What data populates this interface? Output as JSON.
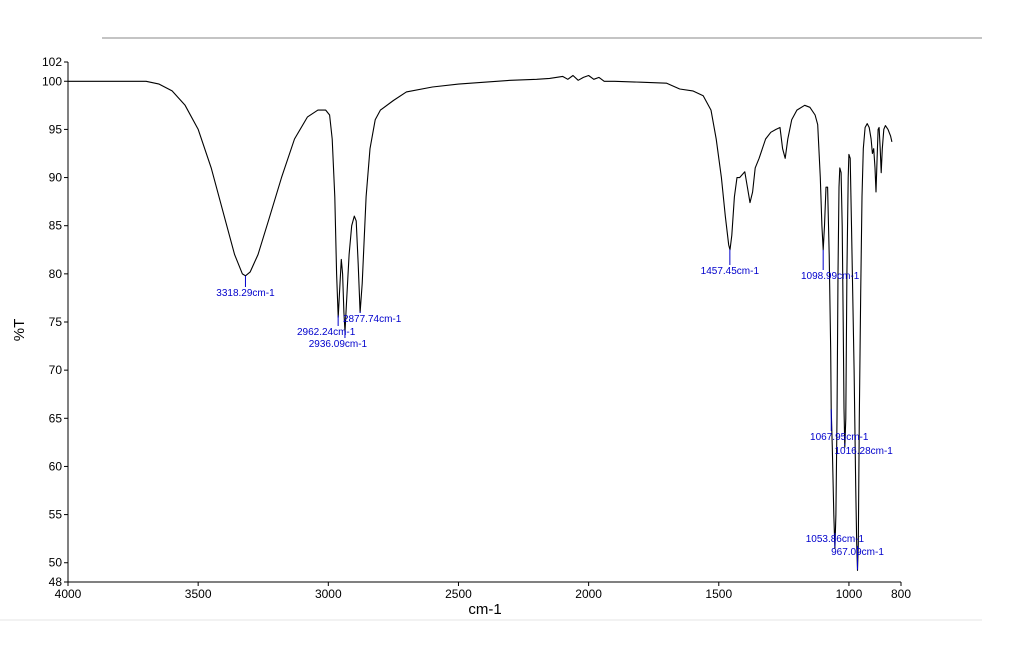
{
  "chart_data": {
    "type": "line",
    "xlabel": "cm-1",
    "ylabel": "%T",
    "xlim": [
      4000,
      800
    ],
    "ylim": [
      48,
      102
    ],
    "x_ticks": [
      4000,
      3500,
      3000,
      2500,
      2000,
      1500,
      1000,
      800
    ],
    "y_ticks": [
      48,
      50,
      55,
      60,
      65,
      70,
      75,
      80,
      85,
      90,
      95,
      100,
      102
    ],
    "grid": false,
    "colors": {
      "line": "#000000",
      "peak_labels": "#0000cc"
    },
    "series": [
      {
        "values": [
          [
            4000,
            100
          ],
          [
            3800,
            100
          ],
          [
            3700,
            100
          ],
          [
            3650,
            99.7
          ],
          [
            3600,
            99
          ],
          [
            3550,
            97.5
          ],
          [
            3500,
            95
          ],
          [
            3450,
            91
          ],
          [
            3400,
            86
          ],
          [
            3360,
            82
          ],
          [
            3330,
            80
          ],
          [
            3318,
            79.8
          ],
          [
            3300,
            80.2
          ],
          [
            3270,
            82
          ],
          [
            3230,
            85.5
          ],
          [
            3180,
            90
          ],
          [
            3130,
            94
          ],
          [
            3080,
            96.3
          ],
          [
            3040,
            97
          ],
          [
            3010,
            97
          ],
          [
            2995,
            96.5
          ],
          [
            2985,
            94
          ],
          [
            2975,
            88
          ],
          [
            2968,
            80
          ],
          [
            2962,
            75.5
          ],
          [
            2955,
            79
          ],
          [
            2950,
            81.5
          ],
          [
            2945,
            80
          ],
          [
            2940,
            76
          ],
          [
            2936,
            74
          ],
          [
            2930,
            77
          ],
          [
            2920,
            82
          ],
          [
            2910,
            85
          ],
          [
            2900,
            86
          ],
          [
            2893,
            85.5
          ],
          [
            2885,
            81
          ],
          [
            2878,
            76
          ],
          [
            2870,
            79
          ],
          [
            2855,
            88
          ],
          [
            2840,
            93
          ],
          [
            2820,
            96
          ],
          [
            2800,
            97
          ],
          [
            2750,
            98
          ],
          [
            2700,
            98.9
          ],
          [
            2600,
            99.4
          ],
          [
            2500,
            99.7
          ],
          [
            2400,
            99.9
          ],
          [
            2300,
            100.1
          ],
          [
            2200,
            100.2
          ],
          [
            2150,
            100.3
          ],
          [
            2100,
            100.5
          ],
          [
            2080,
            100.2
          ],
          [
            2060,
            100.6
          ],
          [
            2040,
            100.1
          ],
          [
            2020,
            100.4
          ],
          [
            2000,
            100.6
          ],
          [
            1980,
            100.2
          ],
          [
            1960,
            100.4
          ],
          [
            1940,
            100
          ],
          [
            1900,
            100
          ],
          [
            1800,
            99.9
          ],
          [
            1700,
            99.8
          ],
          [
            1650,
            99.2
          ],
          [
            1600,
            99
          ],
          [
            1560,
            98.5
          ],
          [
            1530,
            97
          ],
          [
            1510,
            94
          ],
          [
            1490,
            90
          ],
          [
            1475,
            86
          ],
          [
            1462,
            83
          ],
          [
            1457,
            82.5
          ],
          [
            1450,
            84
          ],
          [
            1440,
            88
          ],
          [
            1430,
            90
          ],
          [
            1420,
            90
          ],
          [
            1400,
            90.6
          ],
          [
            1390,
            89
          ],
          [
            1380,
            87.4
          ],
          [
            1370,
            88.5
          ],
          [
            1360,
            91
          ],
          [
            1345,
            92
          ],
          [
            1320,
            94
          ],
          [
            1300,
            94.7
          ],
          [
            1280,
            95
          ],
          [
            1265,
            95.2
          ],
          [
            1255,
            93
          ],
          [
            1245,
            92
          ],
          [
            1235,
            94
          ],
          [
            1220,
            96
          ],
          [
            1200,
            97
          ],
          [
            1170,
            97.5
          ],
          [
            1150,
            97.3
          ],
          [
            1130,
            96.5
          ],
          [
            1120,
            95.5
          ],
          [
            1110,
            90
          ],
          [
            1104,
            85
          ],
          [
            1099,
            82.5
          ],
          [
            1094,
            85
          ],
          [
            1088,
            89
          ],
          [
            1082,
            89
          ],
          [
            1076,
            82
          ],
          [
            1070,
            72
          ],
          [
            1068,
            66
          ],
          [
            1064,
            62
          ],
          [
            1058,
            55
          ],
          [
            1054,
            51.5
          ],
          [
            1050,
            55
          ],
          [
            1046,
            65
          ],
          [
            1042,
            80
          ],
          [
            1038,
            89
          ],
          [
            1035,
            91
          ],
          [
            1030,
            90.5
          ],
          [
            1026,
            85
          ],
          [
            1022,
            75
          ],
          [
            1019,
            66
          ],
          [
            1016,
            62
          ],
          [
            1012,
            65
          ],
          [
            1008,
            80
          ],
          [
            1003,
            90
          ],
          [
            1000,
            92.4
          ],
          [
            995,
            92
          ],
          [
            990,
            85
          ],
          [
            980,
            70
          ],
          [
            974,
            58
          ],
          [
            970,
            52
          ],
          [
            967,
            49.2
          ],
          [
            964,
            52
          ],
          [
            960,
            65
          ],
          [
            955,
            78
          ],
          [
            950,
            88
          ],
          [
            945,
            93
          ],
          [
            938,
            95.2
          ],
          [
            930,
            95.6
          ],
          [
            922,
            95.2
          ],
          [
            915,
            94
          ],
          [
            910,
            92.5
          ],
          [
            905,
            93
          ],
          [
            900,
            91
          ],
          [
            896,
            88.5
          ],
          [
            892,
            92
          ],
          [
            888,
            95
          ],
          [
            884,
            95.2
          ],
          [
            880,
            93
          ],
          [
            876,
            90.5
          ],
          [
            872,
            93
          ],
          [
            866,
            95
          ],
          [
            860,
            95.4
          ],
          [
            850,
            95
          ],
          [
            840,
            94.3
          ],
          [
            835,
            93.7
          ]
        ]
      }
    ],
    "annotations": [
      {
        "label": "3318.29cm-1",
        "x": 3318.29
      },
      {
        "label": "2962.24cm-1",
        "x": 2962.24
      },
      {
        "label": "2936.09cm-1",
        "x": 2936.09
      },
      {
        "label": "2877.74cm-1",
        "x": 2877.74
      },
      {
        "label": "1457.45cm-1",
        "x": 1457.45
      },
      {
        "label": "1098.99cm-1",
        "x": 1098.99
      },
      {
        "label": "1067.95cm-1",
        "x": 1067.95
      },
      {
        "label": "1016.28cm-1",
        "x": 1016.28
      },
      {
        "label": "1053.86cm-1",
        "x": 1053.86
      },
      {
        "label": "967.09cm-1",
        "x": 967.09
      }
    ]
  }
}
